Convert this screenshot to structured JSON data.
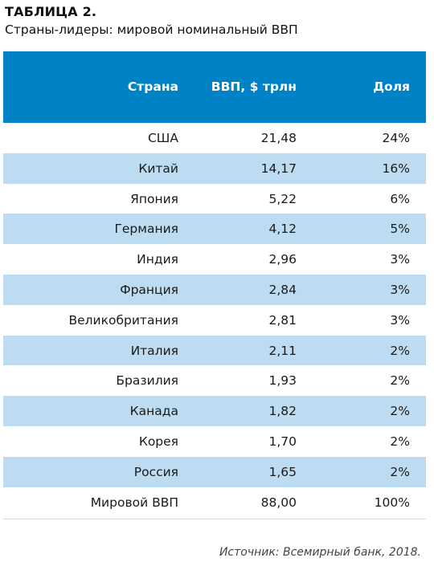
{
  "heading": "ТАБЛИЦА 2.",
  "subtitle": "Страны-лидеры: мировой номинальный ВВП",
  "columns": {
    "country": "Страна",
    "gdp": "ВВП, $ трлн",
    "share": "Доля"
  },
  "rows": [
    {
      "country": "США",
      "gdp": "21,48",
      "share": "24%"
    },
    {
      "country": "Китай",
      "gdp": "14,17",
      "share": "16%"
    },
    {
      "country": "Япония",
      "gdp": "5,22",
      "share": "6%"
    },
    {
      "country": "Германия",
      "gdp": "4,12",
      "share": "5%"
    },
    {
      "country": "Индия",
      "gdp": "2,96",
      "share": "3%"
    },
    {
      "country": "Франция",
      "gdp": "2,84",
      "share": "3%"
    },
    {
      "country": "Великобритания",
      "gdp": "2,81",
      "share": "3%"
    },
    {
      "country": "Италия",
      "gdp": "2,11",
      "share": "2%"
    },
    {
      "country": "Бразилия",
      "gdp": "1,93",
      "share": "2%"
    },
    {
      "country": "Канада",
      "gdp": "1,82",
      "share": "2%"
    },
    {
      "country": "Корея",
      "gdp": "1,70",
      "share": "2%"
    },
    {
      "country": "Россия",
      "gdp": "1,65",
      "share": "2%"
    },
    {
      "country": "Мировой ВВП",
      "gdp": "88,00",
      "share": "100%"
    }
  ],
  "source": "Источник: Всемирный банк, 2018.",
  "colors": {
    "header_bg": "#0083c6",
    "header_text": "#ffffff",
    "stripe": "#bddcf1"
  }
}
